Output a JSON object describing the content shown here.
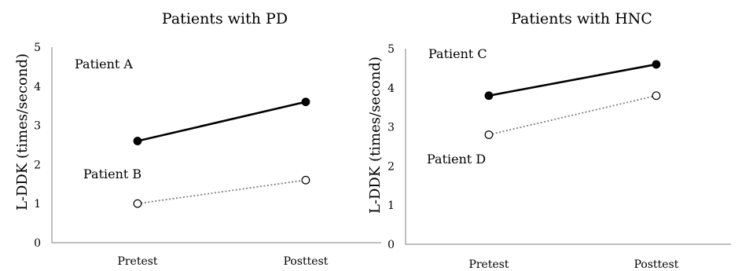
{
  "chart_data": [
    {
      "type": "line",
      "title": "Patients with PD",
      "xlabel": "",
      "ylabel": "L-DDK (times/second)",
      "categories": [
        "Pretest",
        "Posttest"
      ],
      "ylim": [
        0,
        5
      ],
      "yticks": [
        "0",
        "1",
        "2",
        "3",
        "4",
        "5"
      ],
      "grid": false,
      "series": [
        {
          "name": "Patient A",
          "values": [
            2.6,
            3.6
          ],
          "style": "solid",
          "marker": "filled",
          "color": "#000000"
        },
        {
          "name": "Patient B",
          "values": [
            1.0,
            1.6
          ],
          "style": "dotted",
          "marker": "open",
          "color": "#7f7f7f"
        }
      ]
    },
    {
      "type": "line",
      "title": "Patients with HNC",
      "xlabel": "",
      "ylabel": "L-DDK (times/second)",
      "categories": [
        "Pretest",
        "Posttest"
      ],
      "ylim": [
        0,
        5
      ],
      "yticks": [
        "0",
        "1",
        "2",
        "3",
        "4",
        "5"
      ],
      "grid": false,
      "series": [
        {
          "name": "Patient C",
          "values": [
            3.8,
            4.6
          ],
          "style": "solid",
          "marker": "filled",
          "color": "#000000"
        },
        {
          "name": "Patient D",
          "values": [
            2.8,
            3.8
          ],
          "style": "dotted",
          "marker": "open",
          "color": "#7f7f7f"
        }
      ]
    }
  ]
}
